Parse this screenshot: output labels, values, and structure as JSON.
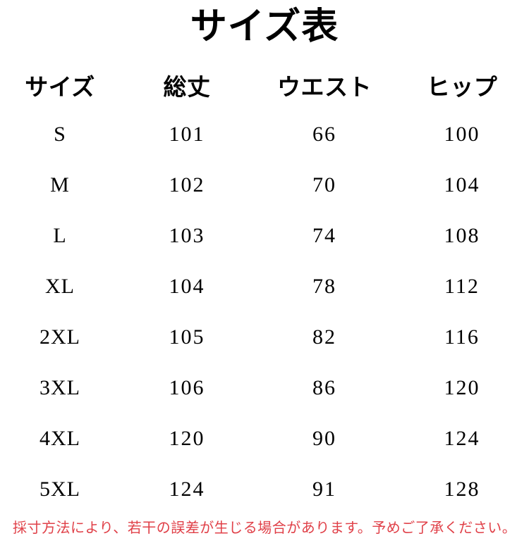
{
  "page": {
    "title": "サイズ表",
    "background_color": "#ffffff",
    "text_color": "#000000",
    "note_color": "#e04048"
  },
  "table": {
    "headers": [
      "サイズ",
      "総丈",
      "ウエスト",
      "ヒップ"
    ],
    "rows": [
      {
        "size": "S",
        "length": "101",
        "waist": "66",
        "hip": "100"
      },
      {
        "size": "M",
        "length": "102",
        "waist": "70",
        "hip": "104"
      },
      {
        "size": "L",
        "length": "103",
        "waist": "74",
        "hip": "108"
      },
      {
        "size": "XL",
        "length": "104",
        "waist": "78",
        "hip": "112"
      },
      {
        "size": "2XL",
        "length": "105",
        "waist": "82",
        "hip": "116"
      },
      {
        "size": "3XL",
        "length": "106",
        "waist": "86",
        "hip": "120"
      },
      {
        "size": "4XL",
        "length": "120",
        "waist": "90",
        "hip": "124"
      },
      {
        "size": "5XL",
        "length": "124",
        "waist": "91",
        "hip": "128"
      }
    ]
  },
  "note": "採寸方法により、若干の誤差が生じる場合があります。予めご了承ください。"
}
